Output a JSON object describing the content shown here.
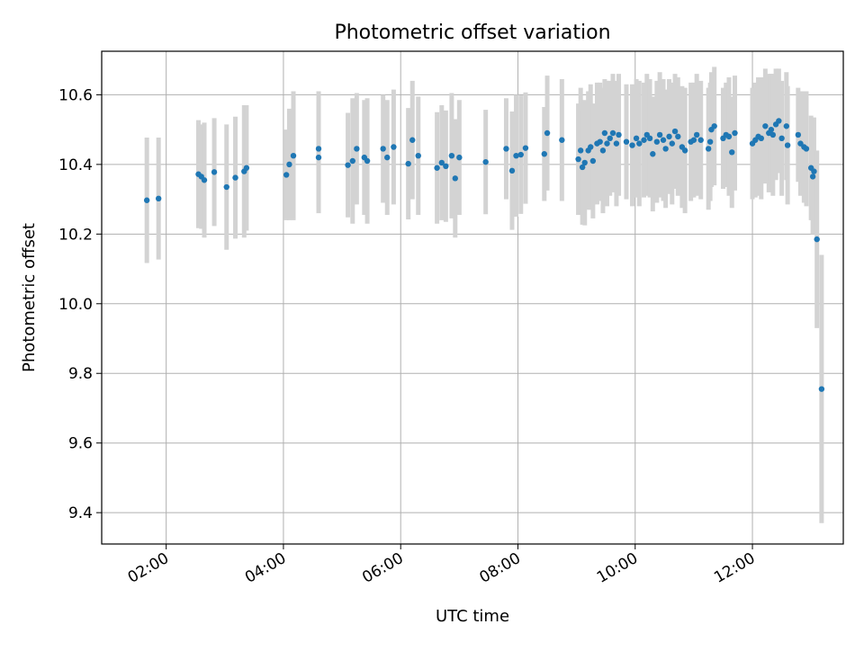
{
  "chart_data": {
    "type": "scatter",
    "title": "Photometric offset variation",
    "xlabel": "UTC time",
    "ylabel": "Photometric offset",
    "x_unit": "hours UTC",
    "xlim": [
      0.9,
      13.55
    ],
    "ylim": [
      9.31,
      10.725
    ],
    "x_ticks": [
      {
        "value": 2,
        "label": "02:00"
      },
      {
        "value": 4,
        "label": "04:00"
      },
      {
        "value": 6,
        "label": "06:00"
      },
      {
        "value": 8,
        "label": "08:00"
      },
      {
        "value": 10,
        "label": "10:00"
      },
      {
        "value": 12,
        "label": "12:00"
      }
    ],
    "y_ticks": [
      {
        "value": 9.4,
        "label": "9.4"
      },
      {
        "value": 9.6,
        "label": "9.6"
      },
      {
        "value": 9.8,
        "label": "9.8"
      },
      {
        "value": 10.0,
        "label": "10.0"
      },
      {
        "value": 10.2,
        "label": "10.2"
      },
      {
        "value": 10.4,
        "label": "10.4"
      },
      {
        "value": 10.6,
        "label": "10.6"
      }
    ],
    "grid": true,
    "marker_color": "#1f77b4",
    "errorbar_color": "#d3d3d3",
    "points": [
      [
        1.67,
        10.297,
        0.18
      ],
      [
        1.87,
        10.302,
        0.175
      ],
      [
        2.55,
        10.372,
        0.155
      ],
      [
        2.6,
        10.365,
        0.15
      ],
      [
        2.65,
        10.355,
        0.165
      ],
      [
        2.82,
        10.378,
        0.155
      ],
      [
        3.03,
        10.335,
        0.18
      ],
      [
        3.18,
        10.362,
        0.175
      ],
      [
        3.33,
        10.38,
        0.19
      ],
      [
        3.37,
        10.39,
        0.18
      ],
      [
        4.05,
        10.37,
        0.13
      ],
      [
        4.1,
        10.4,
        0.16
      ],
      [
        4.17,
        10.425,
        0.185
      ],
      [
        4.6,
        10.42,
        0.16
      ],
      [
        4.6,
        10.445,
        0.165
      ],
      [
        5.1,
        10.398,
        0.15
      ],
      [
        5.18,
        10.41,
        0.18
      ],
      [
        5.25,
        10.445,
        0.16
      ],
      [
        5.38,
        10.42,
        0.165
      ],
      [
        5.43,
        10.41,
        0.18
      ],
      [
        5.7,
        10.445,
        0.155
      ],
      [
        5.77,
        10.42,
        0.165
      ],
      [
        5.88,
        10.45,
        0.165
      ],
      [
        6.13,
        10.402,
        0.16
      ],
      [
        6.2,
        10.47,
        0.17
      ],
      [
        6.3,
        10.425,
        0.17
      ],
      [
        6.62,
        10.39,
        0.16
      ],
      [
        6.7,
        10.405,
        0.165
      ],
      [
        6.77,
        10.395,
        0.16
      ],
      [
        6.87,
        10.425,
        0.18
      ],
      [
        6.93,
        10.36,
        0.17
      ],
      [
        7.0,
        10.42,
        0.165
      ],
      [
        7.45,
        10.407,
        0.15
      ],
      [
        7.8,
        10.445,
        0.145
      ],
      [
        7.9,
        10.382,
        0.17
      ],
      [
        7.97,
        10.425,
        0.175
      ],
      [
        8.05,
        10.428,
        0.17
      ],
      [
        8.13,
        10.447,
        0.16
      ],
      [
        8.45,
        10.43,
        0.135
      ],
      [
        8.5,
        10.49,
        0.165
      ],
      [
        8.75,
        10.47,
        0.175
      ],
      [
        9.03,
        10.415,
        0.16
      ],
      [
        9.07,
        10.44,
        0.18
      ],
      [
        9.1,
        10.392,
        0.165
      ],
      [
        9.14,
        10.405,
        0.18
      ],
      [
        9.2,
        10.44,
        0.17
      ],
      [
        9.24,
        10.45,
        0.18
      ],
      [
        9.28,
        10.41,
        0.165
      ],
      [
        9.35,
        10.46,
        0.175
      ],
      [
        9.4,
        10.465,
        0.17
      ],
      [
        9.45,
        10.44,
        0.18
      ],
      [
        9.48,
        10.49,
        0.155
      ],
      [
        9.52,
        10.46,
        0.18
      ],
      [
        9.57,
        10.475,
        0.165
      ],
      [
        9.62,
        10.49,
        0.17
      ],
      [
        9.68,
        10.46,
        0.18
      ],
      [
        9.72,
        10.485,
        0.175
      ],
      [
        9.85,
        10.465,
        0.165
      ],
      [
        9.95,
        10.455,
        0.175
      ],
      [
        10.02,
        10.475,
        0.17
      ],
      [
        10.07,
        10.46,
        0.18
      ],
      [
        10.15,
        10.47,
        0.165
      ],
      [
        10.2,
        10.485,
        0.175
      ],
      [
        10.25,
        10.475,
        0.17
      ],
      [
        10.3,
        10.43,
        0.165
      ],
      [
        10.37,
        10.465,
        0.175
      ],
      [
        10.42,
        10.485,
        0.18
      ],
      [
        10.48,
        10.47,
        0.175
      ],
      [
        10.52,
        10.445,
        0.17
      ],
      [
        10.58,
        10.48,
        0.165
      ],
      [
        10.63,
        10.46,
        0.175
      ],
      [
        10.68,
        10.495,
        0.165
      ],
      [
        10.73,
        10.48,
        0.17
      ],
      [
        10.8,
        10.45,
        0.175
      ],
      [
        10.85,
        10.44,
        0.18
      ],
      [
        10.95,
        10.465,
        0.17
      ],
      [
        11.0,
        10.47,
        0.165
      ],
      [
        11.05,
        10.485,
        0.175
      ],
      [
        11.12,
        10.47,
        0.17
      ],
      [
        11.25,
        10.445,
        0.175
      ],
      [
        11.28,
        10.465,
        0.17
      ],
      [
        11.3,
        10.5,
        0.165
      ],
      [
        11.35,
        10.51,
        0.17
      ],
      [
        11.5,
        10.475,
        0.145
      ],
      [
        11.55,
        10.485,
        0.15
      ],
      [
        11.6,
        10.48,
        0.17
      ],
      [
        11.65,
        10.435,
        0.16
      ],
      [
        11.7,
        10.49,
        0.165
      ],
      [
        12.0,
        10.46,
        0.16
      ],
      [
        12.05,
        10.47,
        0.165
      ],
      [
        12.1,
        10.48,
        0.17
      ],
      [
        12.15,
        10.475,
        0.175
      ],
      [
        12.22,
        10.51,
        0.165
      ],
      [
        12.28,
        10.49,
        0.17
      ],
      [
        12.32,
        10.5,
        0.16
      ],
      [
        12.35,
        10.485,
        0.175
      ],
      [
        12.4,
        10.515,
        0.16
      ],
      [
        12.45,
        10.525,
        0.15
      ],
      [
        12.5,
        10.475,
        0.165
      ],
      [
        12.58,
        10.51,
        0.155
      ],
      [
        12.6,
        10.455,
        0.17
      ],
      [
        12.78,
        10.485,
        0.135
      ],
      [
        12.82,
        10.46,
        0.15
      ],
      [
        12.88,
        10.45,
        0.16
      ],
      [
        12.92,
        10.445,
        0.165
      ],
      [
        13.0,
        10.39,
        0.15
      ],
      [
        13.03,
        10.365,
        0.165
      ],
      [
        13.05,
        10.38,
        0.155
      ],
      [
        13.1,
        10.185,
        0.255
      ],
      [
        13.18,
        9.755,
        0.385
      ]
    ]
  }
}
